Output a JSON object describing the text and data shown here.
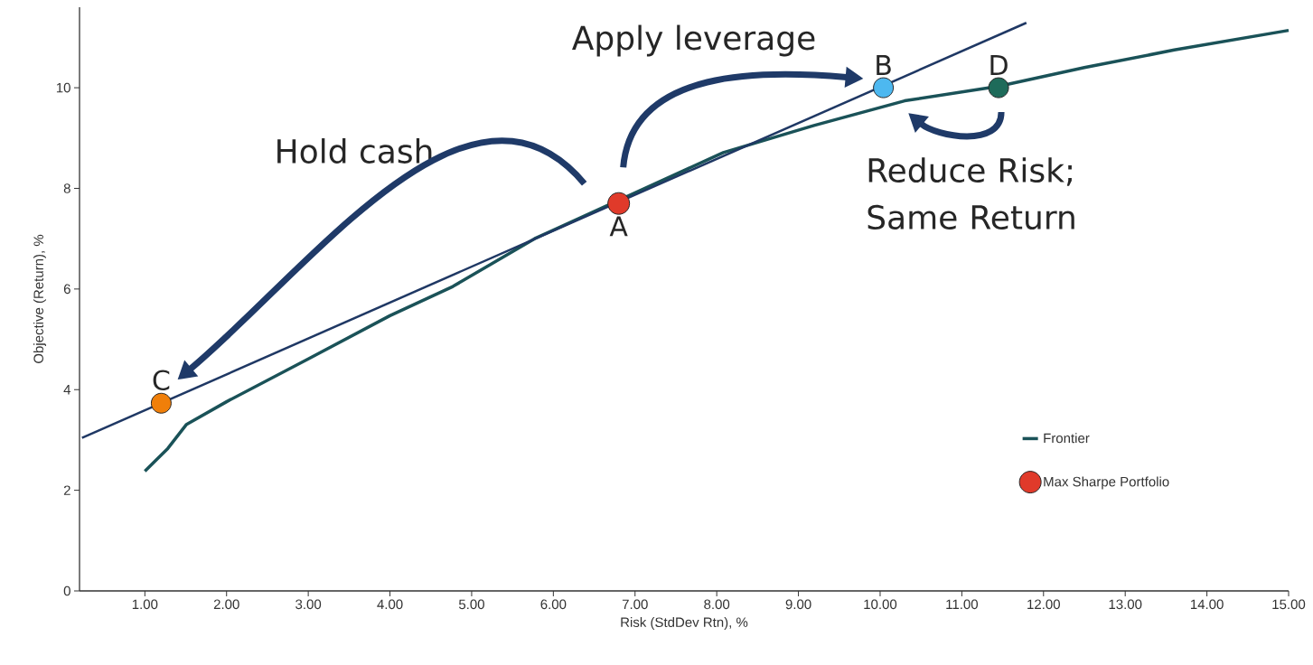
{
  "chart_data": {
    "type": "line",
    "xlabel": "Risk (StdDev Rtn), %",
    "ylabel": "Objective (Return), %",
    "xlim": [
      0.2,
      15
    ],
    "ylim": [
      0,
      11.6
    ],
    "xticks": [
      {
        "value": 1,
        "label": "1.00"
      },
      {
        "value": 2,
        "label": "2.00"
      },
      {
        "value": 3,
        "label": "3.00"
      },
      {
        "value": 4,
        "label": "4.00"
      },
      {
        "value": 5,
        "label": "5.00"
      },
      {
        "value": 6,
        "label": "6.00"
      },
      {
        "value": 7,
        "label": "7.00"
      },
      {
        "value": 8,
        "label": "8.00"
      },
      {
        "value": 9,
        "label": "9.00"
      },
      {
        "value": 10,
        "label": "10.00"
      },
      {
        "value": 11,
        "label": "11.00"
      },
      {
        "value": 12,
        "label": "12.00"
      },
      {
        "value": 13,
        "label": "13.00"
      },
      {
        "value": 14,
        "label": "14.00"
      },
      {
        "value": 15,
        "label": "15.00"
      }
    ],
    "yticks": [
      0,
      2,
      4,
      6,
      8,
      10
    ],
    "legend": "bottom right",
    "series": [
      {
        "name": "Frontier",
        "type": "line",
        "marker": "none",
        "line_style": "solid",
        "color": "#1a5258",
        "x": [
          1.0,
          1.28,
          1.51,
          2.0,
          3.0,
          4.0,
          4.77,
          5.77,
          8.08,
          9.19,
          10.3,
          11.45,
          12.5,
          13.6,
          15.0
        ],
        "values": [
          2.38,
          2.83,
          3.31,
          3.76,
          4.61,
          5.47,
          6.05,
          7.0,
          8.71,
          9.25,
          9.74,
          10.03,
          10.4,
          10.75,
          11.14
        ]
      },
      {
        "type": "line",
        "marker": "none",
        "line_style": "solid",
        "color": "#1f3864",
        "x": [
          0.23,
          11.79
        ],
        "values": [
          3.04,
          11.29
        ]
      },
      {
        "name": "Max Sharpe Portfolio",
        "type": "scatter",
        "marker": "circle",
        "color": "#e03a2a",
        "x": [
          6.8
        ],
        "values": [
          7.7
        ]
      },
      {
        "type": "scatter",
        "marker": "circle",
        "color": "#4db8f0",
        "x": [
          10.04
        ],
        "values": [
          10.0
        ]
      },
      {
        "type": "scatter",
        "marker": "circle",
        "color": "#f07f09",
        "x": [
          1.2
        ],
        "values": [
          3.73
        ]
      },
      {
        "type": "scatter",
        "marker": "circle",
        "color": "#1e6b5a",
        "x": [
          11.45
        ],
        "values": [
          10.0
        ]
      }
    ],
    "annotations": [
      "Apply leverage",
      "Hold cash",
      "Reduce Risk; Same Return",
      {
        "text": "A",
        "x": 6.8,
        "y": 7.7
      },
      {
        "text": "B",
        "x": 10.04,
        "y": 10.0
      },
      {
        "text": "C",
        "x": 1.2,
        "y": 3.73
      },
      {
        "text": "D",
        "x": 11.45,
        "y": 10.0
      }
    ]
  }
}
